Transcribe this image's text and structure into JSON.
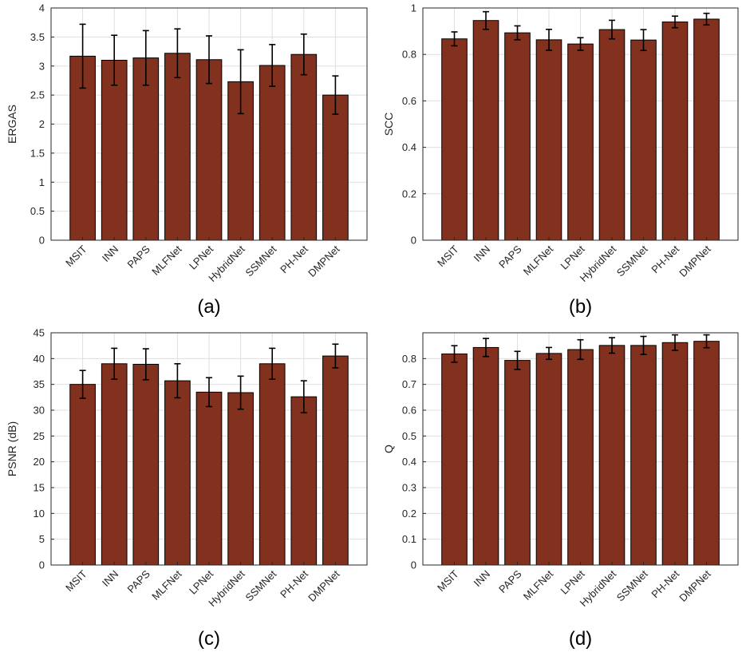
{
  "figure": {
    "bar_color": "#82311e",
    "grid": true
  },
  "chart_data": [
    {
      "type": "bar",
      "panel_label": "(a)",
      "ylabel": "ERGAS",
      "ylim": [
        0,
        4
      ],
      "yticks": [
        0,
        0.5,
        1,
        1.5,
        2,
        2.5,
        3,
        3.5,
        4
      ],
      "ytick_labels": [
        "0",
        "0.5",
        "1",
        "1.5",
        "2",
        "2.5",
        "3",
        "3.5",
        "4"
      ],
      "categories": [
        "MSIT",
        "INN",
        "PAPS",
        "MLFNet",
        "LPNet",
        "HybridNet",
        "SSMNet",
        "PH-Net",
        "DMPNet"
      ],
      "values": [
        3.17,
        3.1,
        3.14,
        3.22,
        3.11,
        2.73,
        3.01,
        3.2,
        2.5
      ],
      "errors": [
        0.55,
        0.43,
        0.47,
        0.42,
        0.41,
        0.55,
        0.36,
        0.35,
        0.33
      ]
    },
    {
      "type": "bar",
      "panel_label": "(b)",
      "ylabel": "SCC",
      "ylim": [
        0,
        1
      ],
      "yticks": [
        0,
        0.2,
        0.4,
        0.6,
        0.8,
        1
      ],
      "ytick_labels": [
        "0",
        "0.2",
        "0.4",
        "0.6",
        "0.8",
        "1"
      ],
      "categories": [
        "MSIT",
        "INN",
        "PAPS",
        "MLFNet",
        "LPNet",
        "HybridNet",
        "SSMNet",
        "PH-Net",
        "DMPNet"
      ],
      "values": [
        0.867,
        0.946,
        0.893,
        0.863,
        0.845,
        0.907,
        0.862,
        0.94,
        0.952
      ],
      "errors": [
        0.03,
        0.038,
        0.03,
        0.045,
        0.027,
        0.04,
        0.045,
        0.025,
        0.025
      ]
    },
    {
      "type": "bar",
      "panel_label": "(c)",
      "ylabel": "PSNR (dB)",
      "ylim": [
        0,
        45
      ],
      "yticks": [
        0,
        5,
        10,
        15,
        20,
        25,
        30,
        35,
        40,
        45
      ],
      "ytick_labels": [
        "0",
        "5",
        "10",
        "15",
        "20",
        "25",
        "30",
        "35",
        "40",
        "45"
      ],
      "categories": [
        "MSIT",
        "INN",
        "PAPS",
        "MLFNet",
        "LPNet",
        "HybridNet",
        "SSMNet",
        "PH-Net",
        "DMPNet"
      ],
      "values": [
        35.0,
        39.0,
        38.9,
        35.7,
        33.5,
        33.4,
        39.0,
        32.6,
        40.5
      ],
      "errors": [
        2.7,
        3.0,
        3.0,
        3.3,
        2.8,
        3.2,
        3.0,
        3.1,
        2.3
      ]
    },
    {
      "type": "bar",
      "panel_label": "(d)",
      "ylabel": "Q",
      "ylim": [
        0,
        0.9
      ],
      "yticks": [
        0,
        0.1,
        0.2,
        0.3,
        0.4,
        0.5,
        0.6,
        0.7,
        0.8
      ],
      "ytick_labels": [
        "0",
        "0.1",
        "0.2",
        "0.3",
        "0.4",
        "0.5",
        "0.6",
        "0.7",
        "0.8"
      ],
      "categories": [
        "MSIT",
        "INN",
        "PAPS",
        "MLFNet",
        "LPNet",
        "HybridNet",
        "SSMNet",
        "PH-Net",
        "DMPNet"
      ],
      "values": [
        0.818,
        0.843,
        0.793,
        0.82,
        0.835,
        0.851,
        0.851,
        0.862,
        0.867
      ],
      "errors": [
        0.032,
        0.035,
        0.035,
        0.023,
        0.038,
        0.03,
        0.035,
        0.03,
        0.025
      ]
    }
  ]
}
